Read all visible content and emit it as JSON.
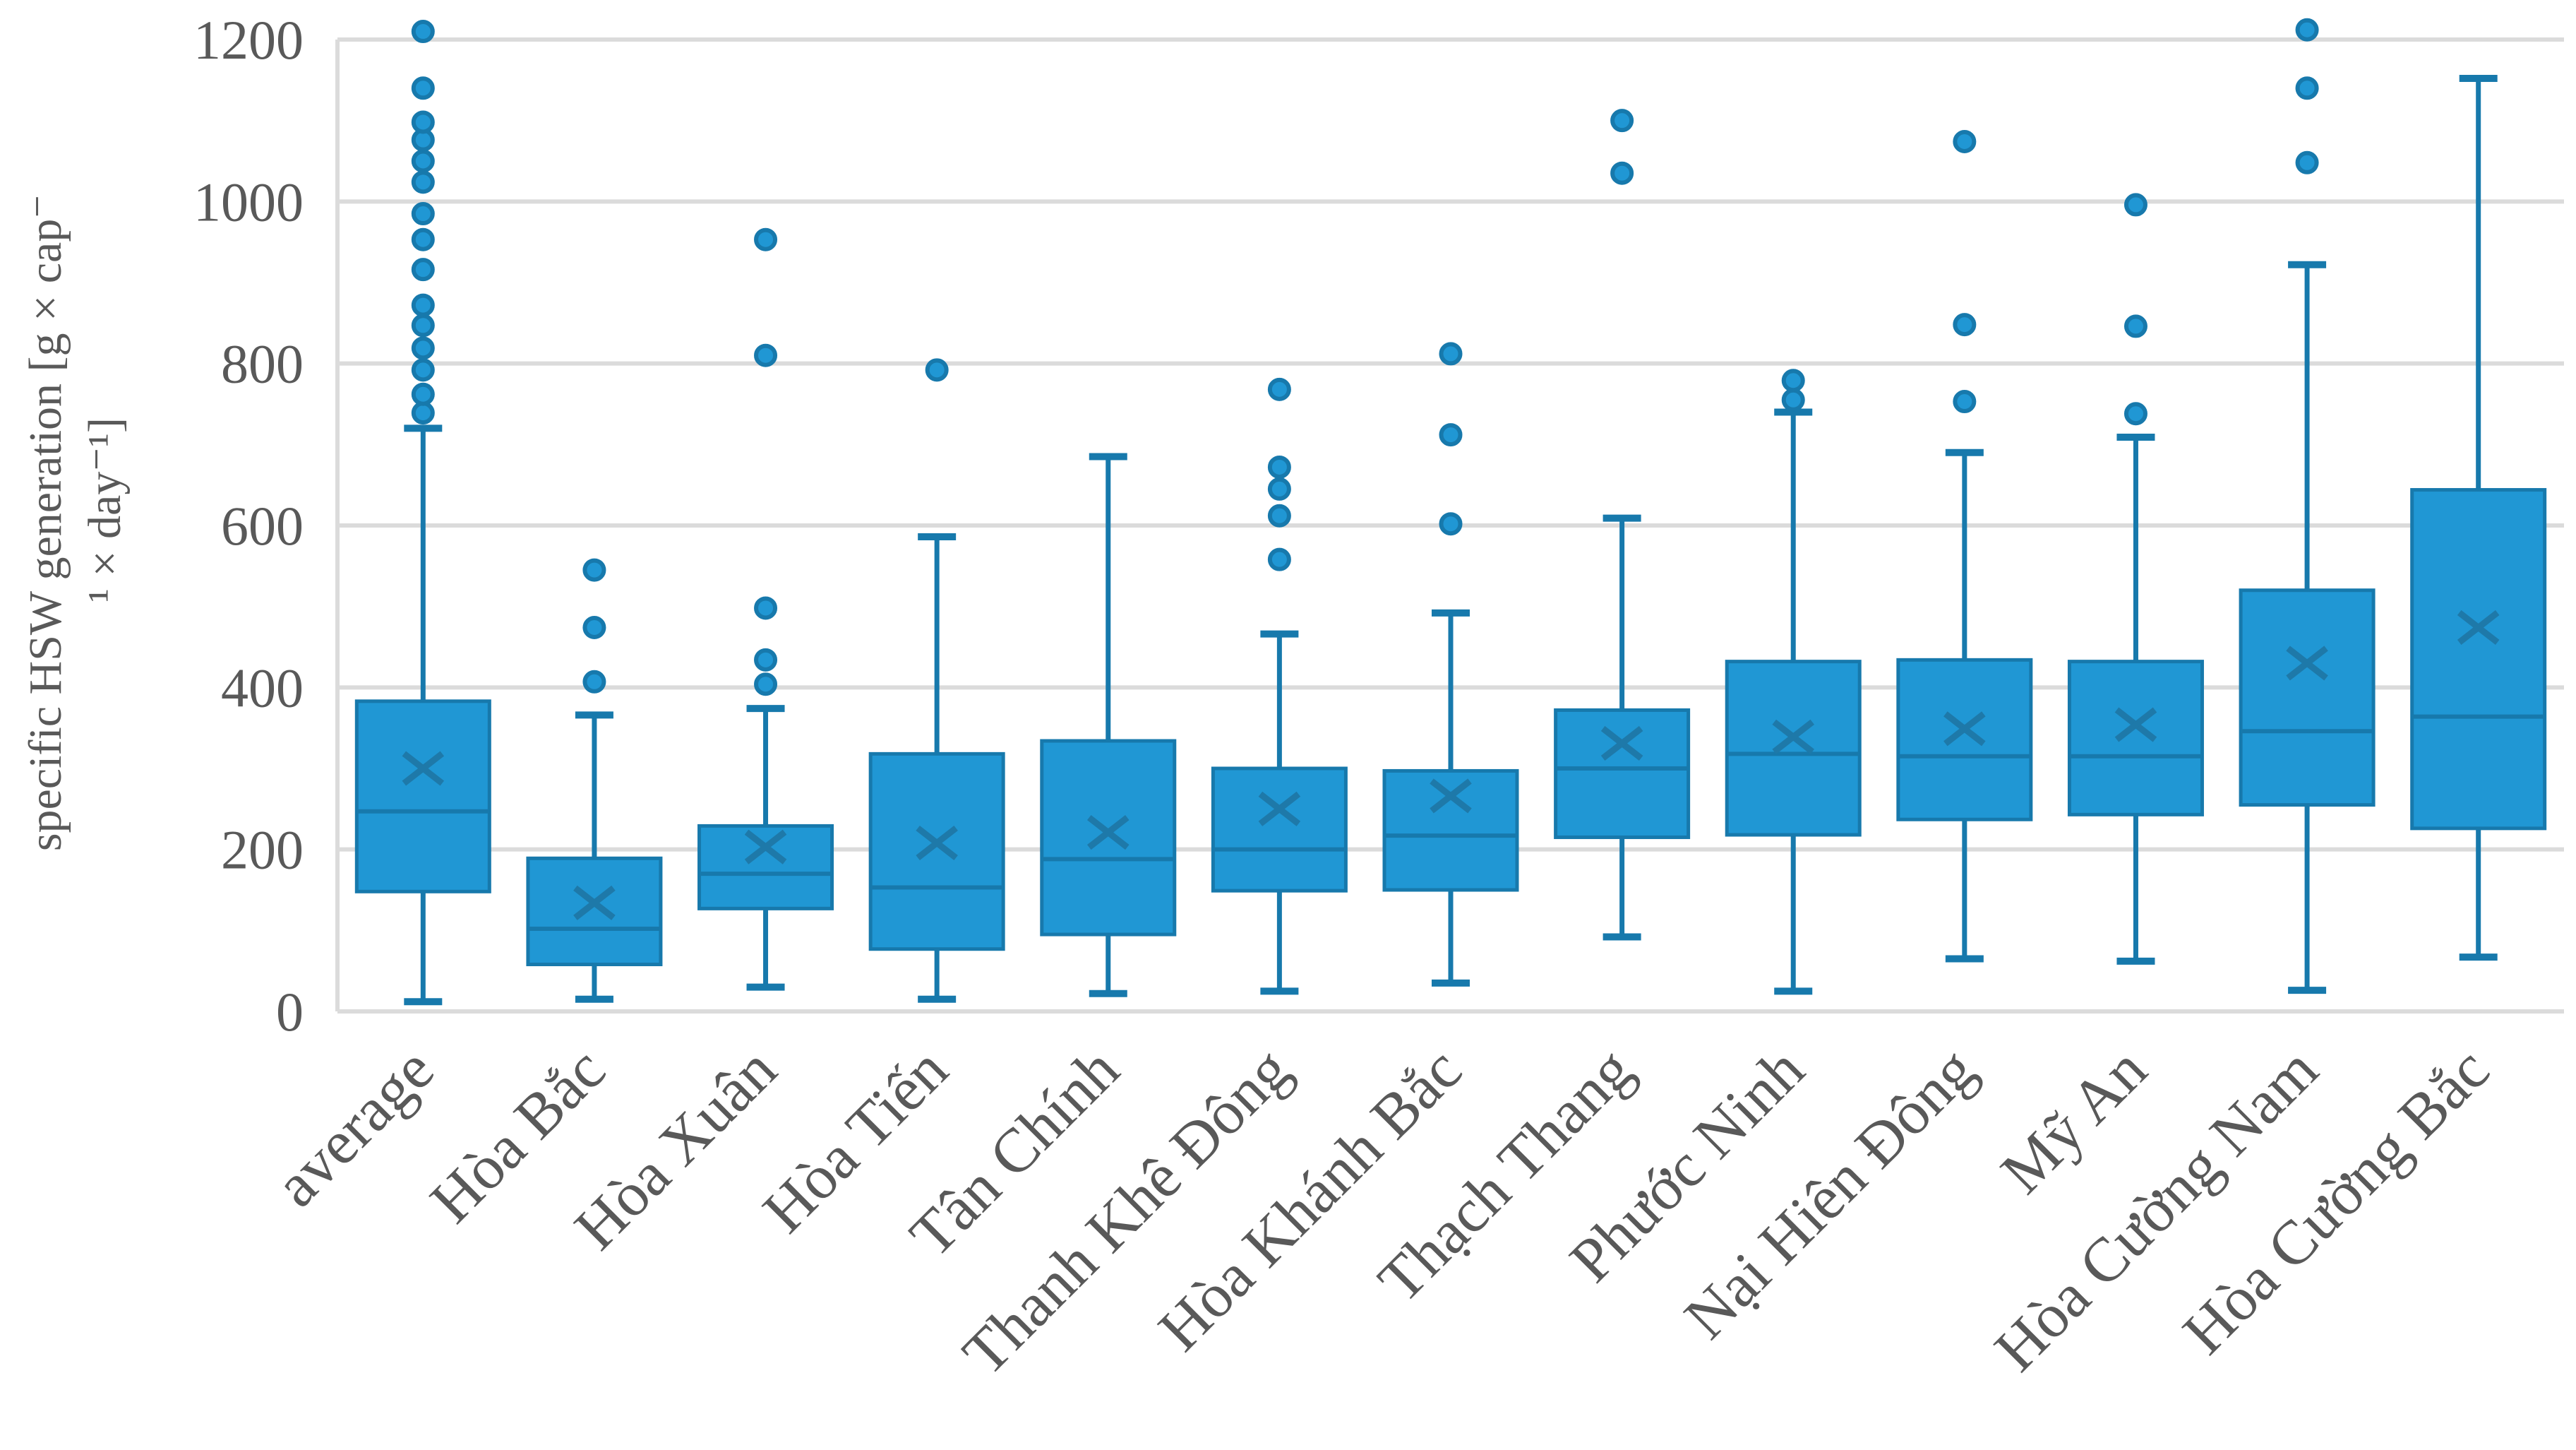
{
  "chart_data": {
    "type": "boxplot",
    "title": "",
    "ylabel": "specific HSW generation [g × cap⁻¹ × day⁻¹]",
    "ylabel_lines": [
      "specific HSW generation [g × cap⁻",
      "¹ × day⁻¹]"
    ],
    "xlabel": "",
    "ylim": [
      0,
      1200
    ],
    "yticks": [
      0,
      200,
      400,
      600,
      800,
      1000,
      1200
    ],
    "grid": "horizontal-only",
    "legend": "none",
    "x_label_rotation_deg": 45,
    "mean_marker_shape": "x",
    "outlier_marker_shape": "circle",
    "categories": [
      "average",
      "Hòa Bắc",
      "Hòa Xuân",
      "Hòa Tiến",
      "Tân Chính",
      "Thanh Khê Đông",
      "Hòa Khánh Bắc",
      "Thạch Thang",
      "Phước Ninh",
      "Nại Hiên Đông",
      "Mỹ An",
      "Hòa Cường Nam",
      "Hòa Cường Bắc"
    ],
    "series": [
      {
        "name": "average",
        "min": 12,
        "q1": 148,
        "median": 247,
        "mean": 300,
        "q3": 383,
        "max": 720,
        "outliers": [
          739,
          762,
          792,
          819,
          847,
          872,
          916,
          953,
          985,
          1024,
          1050,
          1076,
          1098,
          1140,
          1210
        ]
      },
      {
        "name": "Hòa Bắc",
        "min": 15,
        "q1": 58,
        "median": 102,
        "mean": 134,
        "q3": 189,
        "max": 366,
        "outliers": [
          407,
          474,
          545
        ]
      },
      {
        "name": "Hòa Xuân",
        "min": 30,
        "q1": 127,
        "median": 170,
        "mean": 203,
        "q3": 229,
        "max": 374,
        "outliers": [
          404,
          434,
          498,
          810,
          953
        ]
      },
      {
        "name": "Hòa Tiến",
        "min": 15,
        "q1": 77,
        "median": 153,
        "mean": 208,
        "q3": 318,
        "max": 586,
        "outliers": [
          792
        ]
      },
      {
        "name": "Tân Chính",
        "min": 22,
        "q1": 95,
        "median": 188,
        "mean": 221,
        "q3": 334,
        "max": 685,
        "outliers": []
      },
      {
        "name": "Thanh Khê Đông",
        "min": 25,
        "q1": 149,
        "median": 200,
        "mean": 250,
        "q3": 300,
        "max": 466,
        "outliers": [
          558,
          612,
          645,
          672,
          768
        ]
      },
      {
        "name": "Hòa Khánh Bắc",
        "min": 35,
        "q1": 150,
        "median": 217,
        "mean": 266,
        "q3": 297,
        "max": 492,
        "outliers": [
          602,
          712,
          812
        ]
      },
      {
        "name": "Thạch Thang",
        "min": 92,
        "q1": 215,
        "median": 300,
        "mean": 331,
        "q3": 372,
        "max": 609,
        "outliers": [
          1035,
          1100
        ]
      },
      {
        "name": "Phước Ninh",
        "min": 25,
        "q1": 218,
        "median": 318,
        "mean": 339,
        "q3": 432,
        "max": 740,
        "outliers": [
          755,
          779
        ]
      },
      {
        "name": "Nại Hiên Đông",
        "min": 65,
        "q1": 237,
        "median": 315,
        "mean": 349,
        "q3": 434,
        "max": 690,
        "outliers": [
          753,
          848,
          1074
        ]
      },
      {
        "name": "Mỹ An",
        "min": 62,
        "q1": 243,
        "median": 315,
        "mean": 354,
        "q3": 432,
        "max": 709,
        "outliers": [
          738,
          846,
          996
        ]
      },
      {
        "name": "Hòa Cường Nam",
        "min": 26,
        "q1": 255,
        "median": 346,
        "mean": 430,
        "q3": 520,
        "max": 922,
        "outliers": [
          1048,
          1140,
          1212
        ]
      },
      {
        "name": "Hòa Cường Bắc",
        "min": 67,
        "q1": 226,
        "median": 364,
        "mean": 474,
        "q3": 644,
        "max": 1152,
        "outliers": []
      }
    ],
    "colors": {
      "box_fill": "#2097D4",
      "box_stroke": "#1779AC",
      "median_line": "#1779AC",
      "mean_marker": "#1E79A9",
      "whisker": "#1779AC",
      "outlier_fill": "#2097D4",
      "outlier_stroke": "#1779AC",
      "gridline": "#DBDBDB",
      "axis_text": "#595959",
      "background": "#FFFFFF"
    }
  }
}
